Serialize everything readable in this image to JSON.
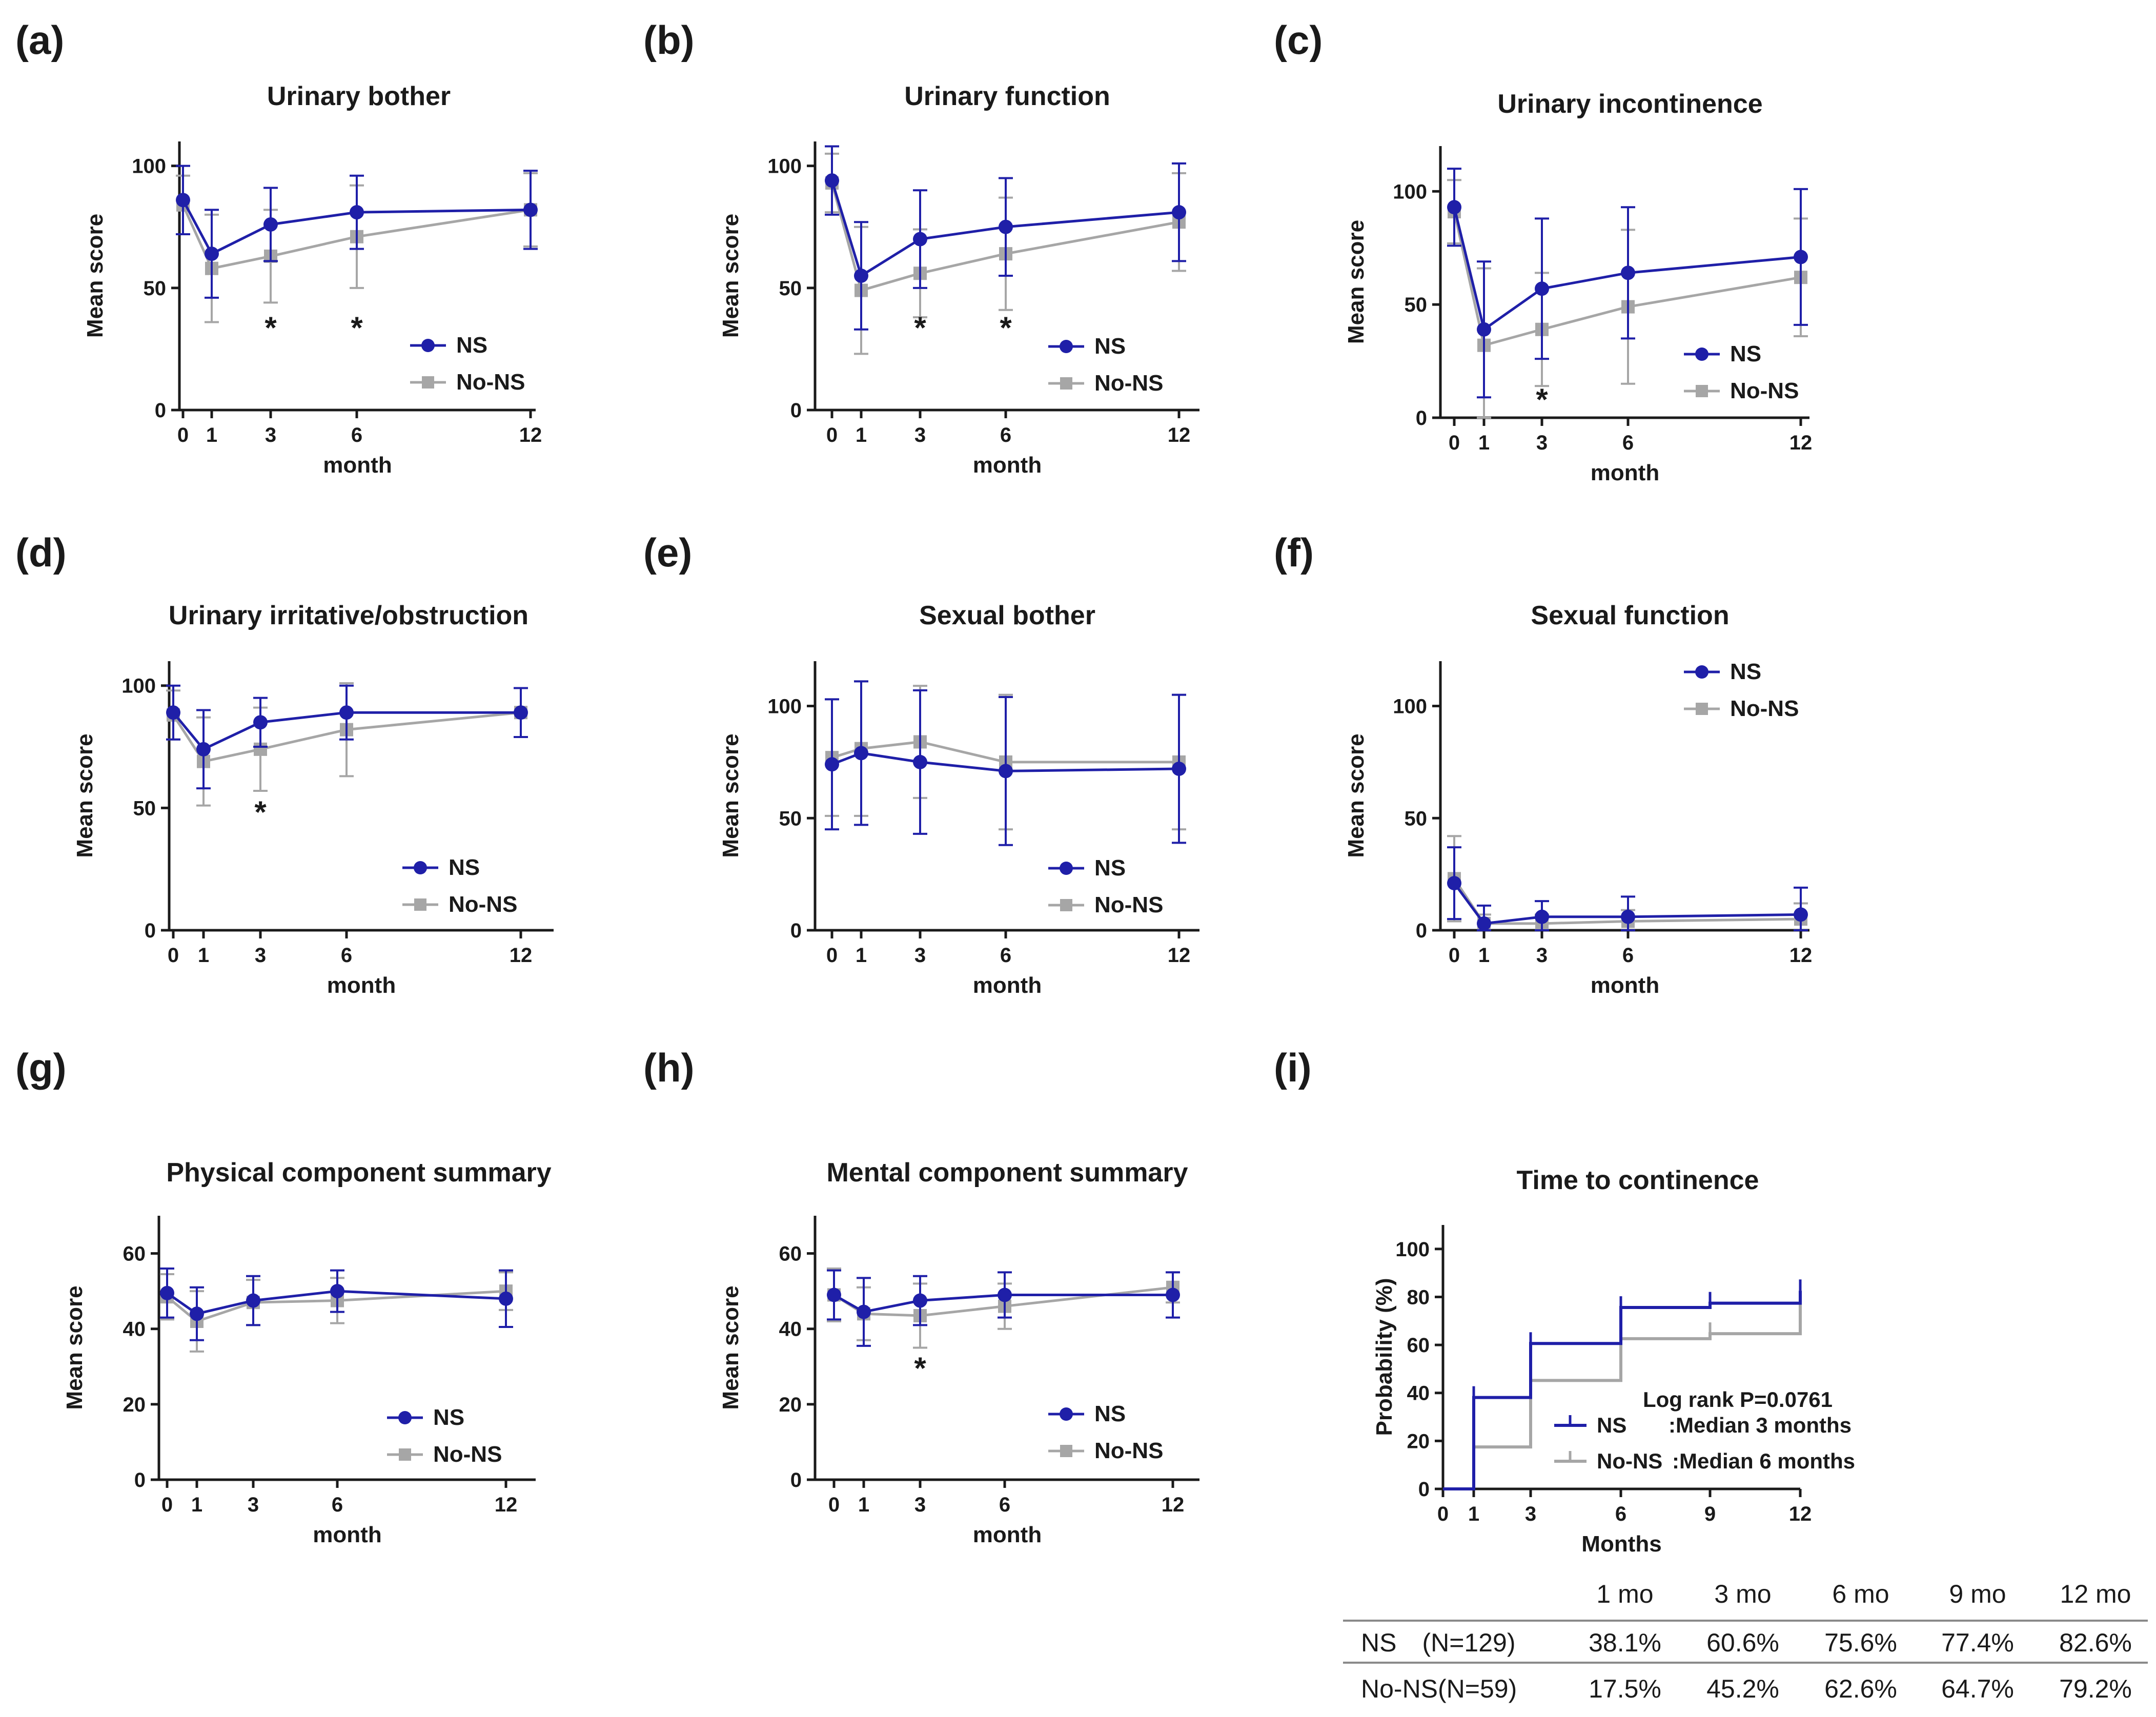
{
  "colors": {
    "ns": "#1f1fa8",
    "no_ns": "#a6a6a6",
    "text": "#1a1a1a"
  },
  "chart_data": [
    {
      "id": "a",
      "panel_label": "(a)",
      "type": "line",
      "title": "Urinary bother",
      "xlabel": "month",
      "ylabel": "Mean score",
      "x": [
        0,
        1,
        3,
        6,
        12
      ],
      "xticks": [
        "0",
        "1",
        "3",
        "6",
        "12"
      ],
      "yticks": [
        0,
        50,
        100
      ],
      "ylim": [
        0,
        110
      ],
      "series": [
        {
          "name": "NS",
          "values": [
            86,
            64,
            76,
            81,
            82
          ],
          "err": [
            14,
            18,
            15,
            15,
            16
          ]
        },
        {
          "name": "No-NS",
          "values": [
            84,
            58,
            63,
            71,
            82
          ],
          "err": [
            12,
            22,
            19,
            21,
            15
          ]
        }
      ],
      "significance": [
        {
          "x": 3,
          "label": "*"
        },
        {
          "x": 6,
          "label": "*"
        }
      ],
      "legend_position": "bottom-right"
    },
    {
      "id": "b",
      "panel_label": "(b)",
      "type": "line",
      "title": "Urinary function",
      "xlabel": "month",
      "ylabel": "Mean score",
      "x": [
        0,
        1,
        3,
        6,
        12
      ],
      "xticks": [
        "0",
        "1",
        "3",
        "6",
        "12"
      ],
      "yticks": [
        0,
        50,
        100
      ],
      "ylim": [
        0,
        110
      ],
      "series": [
        {
          "name": "NS",
          "values": [
            94,
            55,
            70,
            75,
            81
          ],
          "err": [
            14,
            22,
            20,
            20,
            20
          ]
        },
        {
          "name": "No-NS",
          "values": [
            93,
            49,
            56,
            64,
            77
          ],
          "err": [
            12,
            26,
            18,
            23,
            20
          ]
        }
      ],
      "significance": [
        {
          "x": 3,
          "label": "*"
        },
        {
          "x": 6,
          "label": "*"
        }
      ],
      "legend_position": "bottom-right"
    },
    {
      "id": "c",
      "panel_label": "(c)",
      "type": "line",
      "title": "Urinary incontinence",
      "xlabel": "month",
      "ylabel": "Mean score",
      "x": [
        0,
        1,
        3,
        6,
        12
      ],
      "xticks": [
        "0",
        "1",
        "3",
        "6",
        "12"
      ],
      "yticks": [
        0,
        50,
        100
      ],
      "ylim": [
        0,
        120
      ],
      "series": [
        {
          "name": "NS",
          "values": [
            93,
            39,
            57,
            64,
            71
          ],
          "err": [
            17,
            30,
            31,
            29,
            30
          ]
        },
        {
          "name": "No-NS",
          "values": [
            91,
            32,
            39,
            49,
            62
          ],
          "err": [
            14,
            34,
            25,
            34,
            26
          ]
        }
      ],
      "significance": [
        {
          "x": 3,
          "label": "*"
        }
      ],
      "legend_position": "bottom-right"
    },
    {
      "id": "d",
      "panel_label": "(d)",
      "type": "line",
      "title": "Urinary irritative/obstruction",
      "xlabel": "month",
      "ylabel": "Mean score",
      "x": [
        0,
        1,
        3,
        6,
        12
      ],
      "xticks": [
        "0",
        "1",
        "3",
        "6",
        "12"
      ],
      "yticks": [
        0,
        50,
        100
      ],
      "ylim": [
        0,
        110
      ],
      "series": [
        {
          "name": "NS",
          "values": [
            89,
            74,
            85,
            89,
            89
          ],
          "err": [
            11,
            16,
            10,
            11,
            10
          ]
        },
        {
          "name": "No-NS",
          "values": [
            88,
            69,
            74,
            82,
            89
          ],
          "err": [
            10,
            18,
            17,
            19,
            10
          ]
        }
      ],
      "significance": [
        {
          "x": 3,
          "label": "*"
        }
      ],
      "legend_position": "bottom-right"
    },
    {
      "id": "e",
      "panel_label": "(e)",
      "type": "line",
      "title": "Sexual bother",
      "xlabel": "month",
      "ylabel": "Mean score",
      "x": [
        0,
        1,
        3,
        6,
        12
      ],
      "xticks": [
        "0",
        "1",
        "3",
        "6",
        "12"
      ],
      "yticks": [
        0,
        50,
        100
      ],
      "ylim": [
        0,
        120
      ],
      "series": [
        {
          "name": "NS",
          "values": [
            74,
            79,
            75,
            71,
            72
          ],
          "err": [
            29,
            32,
            32,
            33,
            33
          ]
        },
        {
          "name": "No-NS",
          "values": [
            77,
            81,
            84,
            75,
            75
          ],
          "err": [
            26,
            30,
            25,
            30,
            30
          ]
        }
      ],
      "significance": [],
      "legend_position": "bottom-right"
    },
    {
      "id": "f",
      "panel_label": "(f)",
      "type": "line",
      "title": "Sexual function",
      "xlabel": "month",
      "ylabel": "Mean score",
      "x": [
        0,
        1,
        3,
        6,
        12
      ],
      "xticks": [
        "0",
        "1",
        "3",
        "6",
        "12"
      ],
      "yticks": [
        0,
        50,
        100
      ],
      "ylim": [
        0,
        120
      ],
      "series": [
        {
          "name": "NS",
          "values": [
            21,
            3,
            6,
            6,
            7
          ],
          "err": [
            16,
            8,
            7,
            9,
            12
          ]
        },
        {
          "name": "No-NS",
          "values": [
            23,
            3,
            3,
            4,
            5
          ],
          "err": [
            19,
            4,
            4,
            5,
            7
          ]
        }
      ],
      "significance": [],
      "legend_position": "top-right"
    },
    {
      "id": "g",
      "panel_label": "(g)",
      "type": "line",
      "title": "Physical component summary",
      "xlabel": "month",
      "ylabel": "Mean score",
      "x": [
        0,
        1,
        3,
        6,
        12
      ],
      "xticks": [
        "0",
        "1",
        "3",
        "6",
        "12"
      ],
      "yticks": [
        0,
        20,
        40,
        60
      ],
      "ylim": [
        0,
        70
      ],
      "series": [
        {
          "name": "NS",
          "values": [
            49.5,
            44,
            47.5,
            50,
            48
          ],
          "err": [
            6.5,
            7,
            6.5,
            5.5,
            7.5
          ]
        },
        {
          "name": "No-NS",
          "values": [
            48.5,
            42,
            47,
            47.5,
            50
          ],
          "err": [
            6,
            8,
            6,
            6,
            5
          ]
        }
      ],
      "significance": [],
      "legend_position": "bottom-right"
    },
    {
      "id": "h",
      "panel_label": "(h)",
      "type": "line",
      "title": "Mental component summary",
      "xlabel": "month",
      "ylabel": "Mean score",
      "x": [
        0,
        1,
        3,
        6,
        12
      ],
      "xticks": [
        "0",
        "1",
        "3",
        "6",
        "12"
      ],
      "yticks": [
        0,
        20,
        40,
        60
      ],
      "ylim": [
        0,
        70
      ],
      "series": [
        {
          "name": "NS",
          "values": [
            49,
            44.5,
            47.5,
            49,
            49
          ],
          "err": [
            6.5,
            9,
            6.5,
            6,
            6
          ]
        },
        {
          "name": "No-NS",
          "values": [
            49,
            44,
            43.5,
            46,
            51
          ],
          "err": [
            7,
            7,
            8.5,
            6,
            4
          ]
        }
      ],
      "significance": [
        {
          "x": 3,
          "label": "*"
        }
      ],
      "legend_position": "bottom-right"
    },
    {
      "id": "i",
      "panel_label": "(i)",
      "type": "line",
      "step": true,
      "title": "Time to continence",
      "xlabel": "Months",
      "ylabel": "Probability (%)",
      "xticks": [
        0,
        1,
        3,
        6,
        9,
        12
      ],
      "yticks": [
        0,
        20,
        40,
        60,
        80,
        100
      ],
      "ylim": [
        0,
        110
      ],
      "xlim": [
        0,
        12
      ],
      "series": [
        {
          "name": "NS",
          "x": [
            0,
            1,
            3,
            6,
            9,
            12
          ],
          "values": [
            0,
            38.1,
            60.6,
            75.6,
            77.4,
            82.6
          ]
        },
        {
          "name": "No-NS",
          "x": [
            0,
            1,
            3,
            6,
            9,
            12
          ],
          "values": [
            0,
            17.5,
            45.2,
            62.6,
            64.7,
            79.2
          ]
        }
      ],
      "annotation": "Log rank P=0.0761",
      "legend": [
        {
          "name": "NS",
          "note": ":Median 3 months"
        },
        {
          "name": "No-NS",
          "note": ":Median 6 months"
        }
      ],
      "legend_position": "bottom-right"
    }
  ],
  "table": {
    "columns": [
      "1 mo",
      "3 mo",
      "6 mo",
      "9 mo",
      "12 mo"
    ],
    "rows": [
      {
        "label": "NS　(N=129)",
        "values": [
          "38.1%",
          "60.6%",
          "75.6%",
          "77.4%",
          "82.6%"
        ]
      },
      {
        "label": "No-NS(N=59)",
        "values": [
          "17.5%",
          "45.2%",
          "62.6%",
          "64.7%",
          "79.2%"
        ]
      }
    ]
  }
}
